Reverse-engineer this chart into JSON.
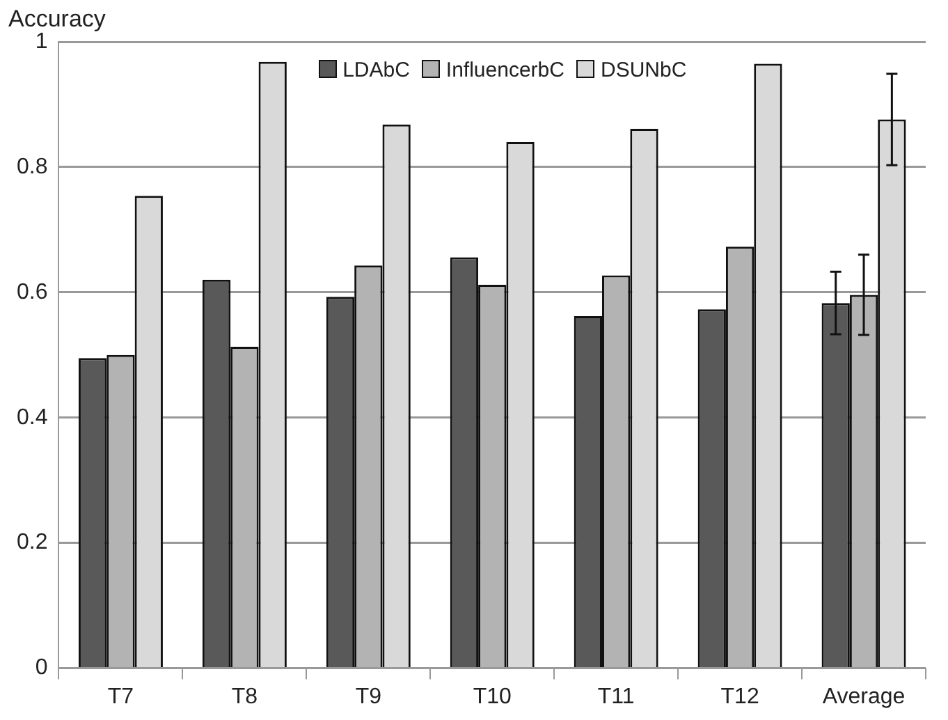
{
  "chart_data": {
    "type": "bar",
    "ylabel": "Accuracy",
    "categories": [
      "T7",
      "T8",
      "T9",
      "T10",
      "T11",
      "T12",
      "Average"
    ],
    "series": [
      {
        "name": "LDAbC",
        "color": "#595959",
        "values": [
          0.495,
          0.62,
          0.593,
          0.656,
          0.562,
          0.573,
          0.583
        ],
        "errors": [
          null,
          null,
          null,
          null,
          null,
          null,
          0.05
        ]
      },
      {
        "name": "InfluencerbC",
        "color": "#b3b3b3",
        "values": [
          0.5,
          0.513,
          0.643,
          0.612,
          0.627,
          0.673,
          0.596
        ],
        "errors": [
          null,
          null,
          null,
          null,
          null,
          null,
          0.064
        ]
      },
      {
        "name": "DSUNbC",
        "color": "#d9d9d9",
        "values": [
          0.754,
          0.968,
          0.868,
          0.84,
          0.861,
          0.965,
          0.876
        ],
        "errors": [
          null,
          null,
          null,
          null,
          null,
          null,
          0.073
        ]
      }
    ],
    "ylim": [
      0,
      1
    ],
    "yticks": [
      0,
      0.2,
      0.4,
      0.6,
      0.8,
      1
    ],
    "grid": "y",
    "legend": "top"
  }
}
